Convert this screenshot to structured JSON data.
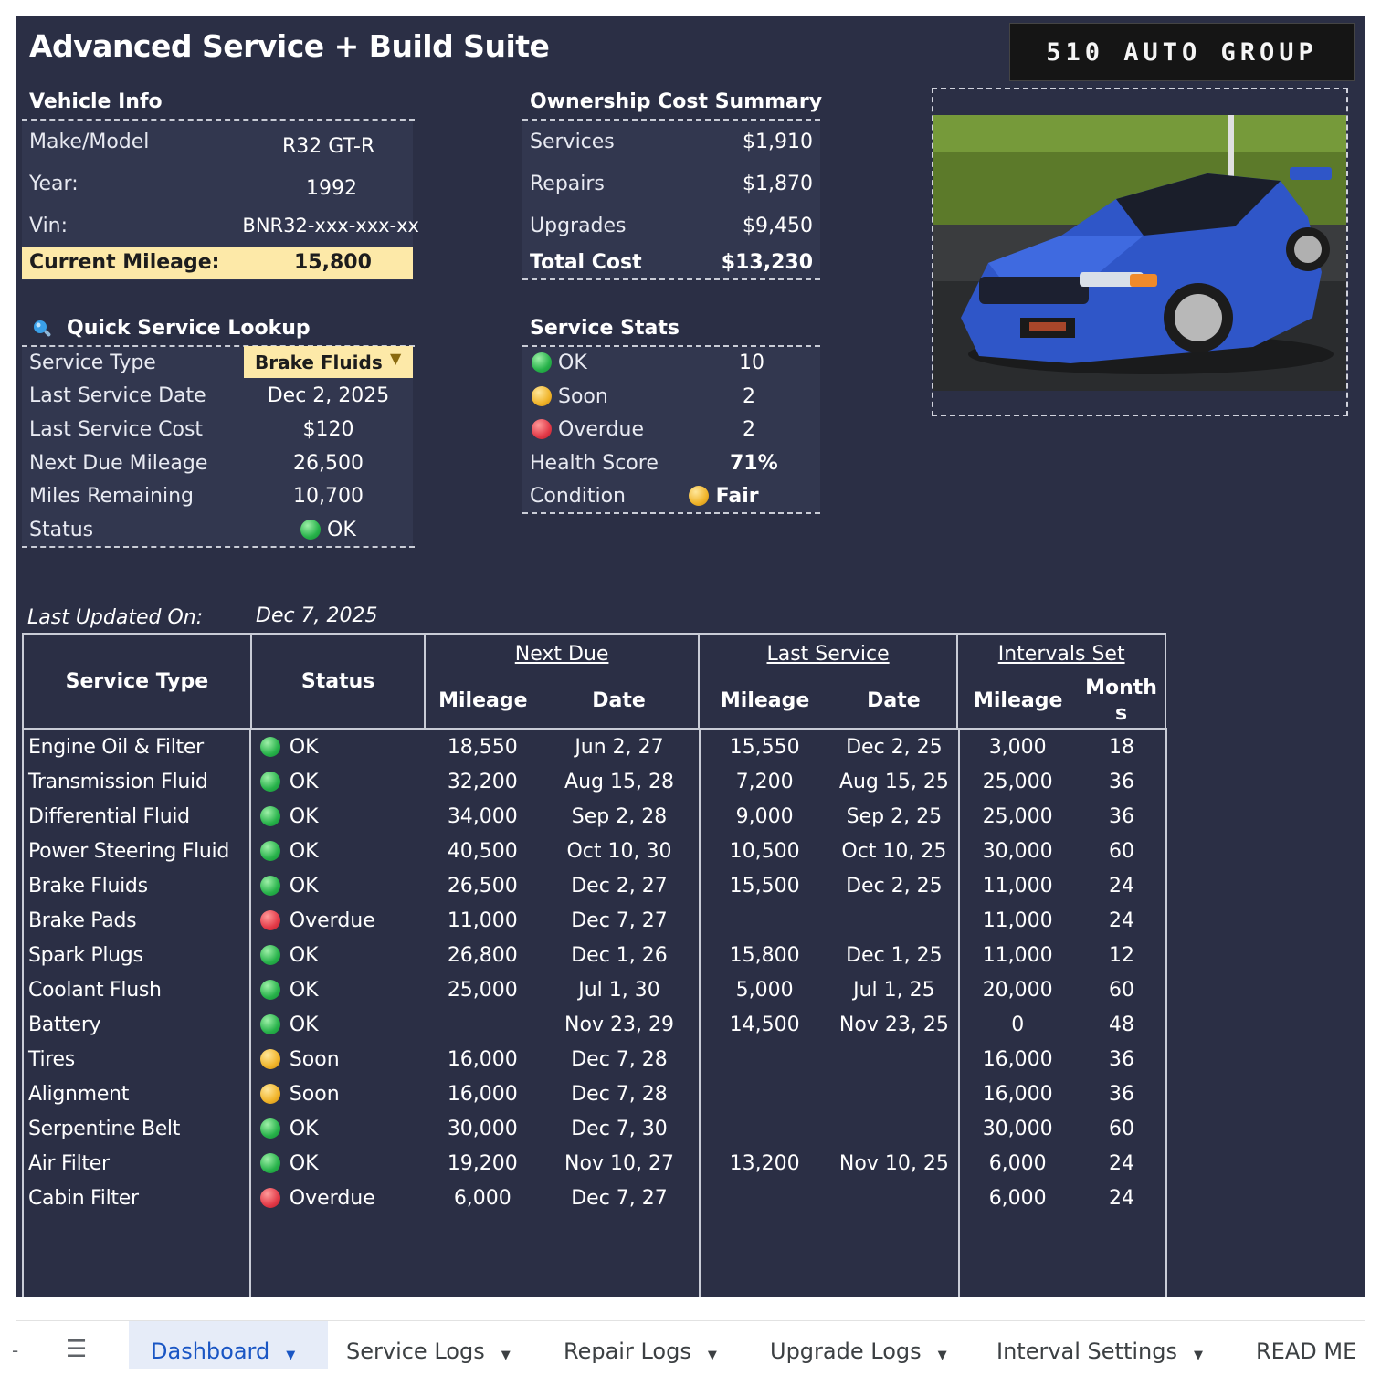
{
  "title": "Advanced Service + Build Suite",
  "logo_text": "510 AUTO GROUP",
  "vehicle_info": {
    "heading": "Vehicle Info",
    "make_model_label": "Make/Model",
    "make_model_value": "R32 GT-R",
    "year_label": "Year:",
    "year_value": "1992",
    "vin_label": "Vin:",
    "vin_value": "BNR32-xxx-xxx-xx",
    "mileage_label": "Current Mileage:",
    "mileage_value": "15,800"
  },
  "ownership": {
    "heading": "Ownership Cost Summary",
    "rows": [
      {
        "label": "Services",
        "value": "$1,910"
      },
      {
        "label": "Repairs",
        "value": "$1,870"
      },
      {
        "label": "Upgrades",
        "value": "$9,450"
      }
    ],
    "total_label": "Total Cost",
    "total_value": "$13,230"
  },
  "lookup": {
    "heading": "Quick Service Lookup",
    "icon": "magnifier-icon",
    "service_type_label": "Service Type",
    "service_type_value": "Brake Fluids",
    "rows": [
      {
        "label": "Last Service Date",
        "value": "Dec 2, 2025"
      },
      {
        "label": "Last Service Cost",
        "value": "$120"
      },
      {
        "label": "Next Due Mileage",
        "value": "26,500"
      },
      {
        "label": "Miles Remaining",
        "value": "10,700"
      }
    ],
    "status_label": "Status",
    "status_value": "OK"
  },
  "stats": {
    "heading": "Service Stats",
    "ok_label": "OK",
    "ok_value": "10",
    "soon_label": "Soon",
    "soon_value": "2",
    "overdue_label": "Overdue",
    "overdue_value": "2",
    "health_label": "Health Score",
    "health_value": "71%",
    "condition_label": "Condition",
    "condition_value": "Fair"
  },
  "last_updated_label": "Last Updated On:",
  "last_updated_value": "Dec 7, 2025",
  "table": {
    "h_service": "Service Type",
    "h_status": "Status",
    "h_next": "Next Due",
    "h_last": "Last Service",
    "h_intervals": "Intervals Set",
    "h_mileage": "Mileage",
    "h_date": "Date",
    "h_months_a": "Month",
    "h_months_b": "s",
    "rows": [
      {
        "service": "Engine Oil & Filter",
        "status": "OK",
        "color": "green",
        "next_mileage": "18,550",
        "next_date": "Jun 2, 27",
        "last_mileage": "15,550",
        "last_date": "Dec 2, 25",
        "int_mileage": "3,000",
        "int_months": "18"
      },
      {
        "service": "Transmission Fluid",
        "status": "OK",
        "color": "green",
        "next_mileage": "32,200",
        "next_date": "Aug 15, 28",
        "last_mileage": "7,200",
        "last_date": "Aug 15, 25",
        "int_mileage": "25,000",
        "int_months": "36"
      },
      {
        "service": "Differential Fluid",
        "status": "OK",
        "color": "green",
        "next_mileage": "34,000",
        "next_date": "Sep 2, 28",
        "last_mileage": "9,000",
        "last_date": "Sep 2, 25",
        "int_mileage": "25,000",
        "int_months": "36"
      },
      {
        "service": "Power Steering Fluid",
        "status": "OK",
        "color": "green",
        "next_mileage": "40,500",
        "next_date": "Oct 10, 30",
        "last_mileage": "10,500",
        "last_date": "Oct 10, 25",
        "int_mileage": "30,000",
        "int_months": "60"
      },
      {
        "service": "Brake Fluids",
        "status": "OK",
        "color": "green",
        "next_mileage": "26,500",
        "next_date": "Dec 2, 27",
        "last_mileage": "15,500",
        "last_date": "Dec 2, 25",
        "int_mileage": "11,000",
        "int_months": "24"
      },
      {
        "service": "Brake Pads",
        "status": "Overdue",
        "color": "red",
        "next_mileage": "11,000",
        "next_date": "Dec 7, 27",
        "last_mileage": "",
        "last_date": "",
        "int_mileage": "11,000",
        "int_months": "24"
      },
      {
        "service": "Spark Plugs",
        "status": "OK",
        "color": "green",
        "next_mileage": "26,800",
        "next_date": "Dec 1, 26",
        "last_mileage": "15,800",
        "last_date": "Dec 1, 25",
        "int_mileage": "11,000",
        "int_months": "12"
      },
      {
        "service": "Coolant Flush",
        "status": "OK",
        "color": "green",
        "next_mileage": "25,000",
        "next_date": "Jul 1, 30",
        "last_mileage": "5,000",
        "last_date": "Jul 1, 25",
        "int_mileage": "20,000",
        "int_months": "60"
      },
      {
        "service": "Battery",
        "status": "OK",
        "color": "green",
        "next_mileage": "",
        "next_date": "Nov 23, 29",
        "last_mileage": "14,500",
        "last_date": "Nov 23, 25",
        "int_mileage": "0",
        "int_months": "48"
      },
      {
        "service": "Tires",
        "status": "Soon",
        "color": "yellow",
        "next_mileage": "16,000",
        "next_date": "Dec 7, 28",
        "last_mileage": "",
        "last_date": "",
        "int_mileage": "16,000",
        "int_months": "36"
      },
      {
        "service": "Alignment",
        "status": "Soon",
        "color": "yellow",
        "next_mileage": "16,000",
        "next_date": "Dec 7, 28",
        "last_mileage": "",
        "last_date": "",
        "int_mileage": "16,000",
        "int_months": "36"
      },
      {
        "service": "Serpentine Belt",
        "status": "OK",
        "color": "green",
        "next_mileage": "30,000",
        "next_date": "Dec 7, 30",
        "last_mileage": "",
        "last_date": "",
        "int_mileage": "30,000",
        "int_months": "60"
      },
      {
        "service": "Air Filter",
        "status": "OK",
        "color": "green",
        "next_mileage": "19,200",
        "next_date": "Nov 10, 27",
        "last_mileage": "13,200",
        "last_date": "Nov 10, 25",
        "int_mileage": "6,000",
        "int_months": "24"
      },
      {
        "service": "Cabin Filter",
        "status": "Overdue",
        "color": "red",
        "next_mileage": "6,000",
        "next_date": "Dec 7, 27",
        "last_mileage": "",
        "last_date": "",
        "int_mileage": "6,000",
        "int_months": "24"
      }
    ]
  },
  "tabs": [
    {
      "label": "Dashboard",
      "active": true,
      "dropdown": true
    },
    {
      "label": "Service Logs",
      "active": false,
      "dropdown": true
    },
    {
      "label": "Repair Logs",
      "active": false,
      "dropdown": true
    },
    {
      "label": "Upgrade Logs",
      "active": false,
      "dropdown": true
    },
    {
      "label": "Interval Settings",
      "active": false,
      "dropdown": true
    },
    {
      "label": "READ ME",
      "active": false,
      "dropdown": false
    }
  ],
  "colors": {
    "sheet_bg": "#2b2f45",
    "highlight": "#fde9a8",
    "active_tab": "#1a56c4"
  }
}
